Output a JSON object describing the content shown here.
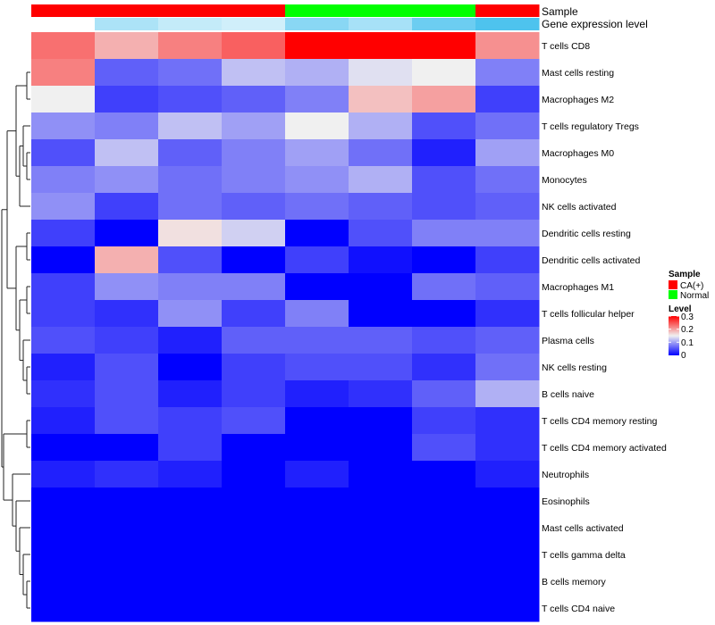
{
  "chart_data": {
    "type": "heatmap",
    "columns": 8,
    "rows": [
      "T cells CD8",
      "Mast cells resting",
      "Macrophages M2",
      "T cells regulatory  Tregs",
      "Macrophages M0",
      "Monocytes",
      "NK cells activated",
      "Dendritic cells resting",
      "Dendritic cells activated",
      "Macrophages M1",
      "T cells follicular helper",
      "Plasma cells",
      "NK cells resting",
      "B cells naive",
      "T cells CD4 memory resting",
      "T cells CD4 memory activated",
      "Neutrophils",
      "Eosinophils",
      "Mast cells activated",
      "T cells gamma delta",
      "B cells memory",
      "T cells CD4 naive"
    ],
    "values": [
      [
        0.23,
        0.19,
        0.22,
        0.24,
        0.3,
        0.3,
        0.3,
        0.21
      ],
      [
        0.22,
        0.06,
        0.07,
        0.12,
        0.11,
        0.14,
        0.15,
        0.08
      ],
      [
        0.15,
        0.04,
        0.05,
        0.06,
        0.08,
        0.18,
        0.2,
        0.04
      ],
      [
        0.09,
        0.08,
        0.12,
        0.1,
        0.15,
        0.11,
        0.05,
        0.07
      ],
      [
        0.05,
        0.12,
        0.06,
        0.08,
        0.1,
        0.07,
        0.02,
        0.1
      ],
      [
        0.08,
        0.09,
        0.07,
        0.08,
        0.09,
        0.11,
        0.05,
        0.07
      ],
      [
        0.09,
        0.04,
        0.07,
        0.06,
        0.07,
        0.06,
        0.05,
        0.06
      ],
      [
        0.04,
        0.0,
        0.16,
        0.13,
        0.0,
        0.05,
        0.08,
        0.08
      ],
      [
        0.0,
        0.19,
        0.05,
        0.0,
        0.04,
        0.01,
        0.0,
        0.04
      ],
      [
        0.04,
        0.09,
        0.08,
        0.08,
        0.0,
        0.0,
        0.07,
        0.06
      ],
      [
        0.04,
        0.03,
        0.09,
        0.04,
        0.08,
        0.0,
        0.0,
        0.03
      ],
      [
        0.05,
        0.04,
        0.02,
        0.06,
        0.06,
        0.06,
        0.05,
        0.06
      ],
      [
        0.02,
        0.05,
        0.0,
        0.04,
        0.05,
        0.05,
        0.03,
        0.07
      ],
      [
        0.03,
        0.05,
        0.02,
        0.04,
        0.02,
        0.03,
        0.06,
        0.11
      ],
      [
        0.02,
        0.05,
        0.04,
        0.05,
        0.0,
        0.0,
        0.04,
        0.03
      ],
      [
        0.0,
        0.0,
        0.04,
        0.0,
        0.0,
        0.0,
        0.05,
        0.03
      ],
      [
        0.02,
        0.03,
        0.02,
        0.0,
        0.02,
        0.0,
        0.0,
        0.02
      ],
      [
        0.0,
        0.0,
        0.0,
        0.0,
        0.0,
        0.0,
        0.0,
        0.0
      ],
      [
        0.0,
        0.0,
        0.0,
        0.0,
        0.0,
        0.0,
        0.0,
        0.0
      ],
      [
        0.0,
        0.0,
        0.0,
        0.0,
        0.0,
        0.0,
        0.0,
        0.0
      ],
      [
        0.0,
        0.0,
        0.0,
        0.0,
        0.0,
        0.0,
        0.0,
        0.0
      ],
      [
        0.0,
        0.0,
        0.0,
        0.0,
        0.0,
        0.0,
        0.0,
        0.0
      ]
    ],
    "value_range": [
      0,
      0.3
    ],
    "color_scale": {
      "low": "#0000ff",
      "mid": "#f0f0f0",
      "high": "#ff0000",
      "mid_value": 0.15
    },
    "annotations": [
      {
        "name": "Sample",
        "values": [
          "CA(+)",
          "CA(+)",
          "CA(+)",
          "CA(+)",
          "Normal",
          "Normal",
          "Normal",
          "CA(+)"
        ]
      },
      {
        "name": "Gene expression level",
        "levels": [
          0.3,
          0.16,
          0.2,
          0.22,
          0.1,
          0.15,
          0.05,
          0.0
        ]
      }
    ],
    "legend": {
      "placement": "right",
      "sample": {
        "title": "Sample",
        "entries": [
          {
            "label": "CA(+)",
            "color": "#ff0000"
          },
          {
            "label": "Normal",
            "color": "#00ff00"
          }
        ]
      },
      "level": {
        "title": "Level",
        "ticks": [
          "0.3",
          "0.2",
          "0.1",
          "0"
        ]
      }
    },
    "gene_expression_palette": {
      "low": "#4ec3ee",
      "high": "#ffffff"
    }
  }
}
